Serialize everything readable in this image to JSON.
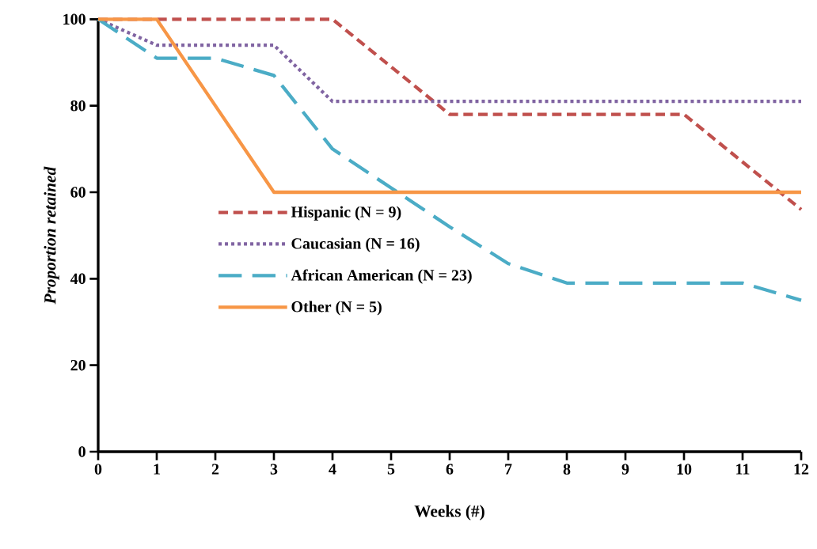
{
  "chart_data": {
    "type": "line",
    "xlabel": "Weeks (#)",
    "ylabel": "Proportion retained",
    "x": [
      0,
      1,
      2,
      3,
      4,
      5,
      6,
      7,
      8,
      9,
      10,
      11,
      12
    ],
    "xlim": [
      0,
      12
    ],
    "xticks": [
      0,
      1,
      2,
      3,
      4,
      5,
      6,
      7,
      8,
      9,
      10,
      11,
      12
    ],
    "ylim": [
      0,
      100
    ],
    "yticks": [
      0,
      20,
      40,
      60,
      80,
      100
    ],
    "grid": false,
    "legend": "left",
    "marker": "none",
    "series": [
      {
        "name": "Hispanic (N = 9)",
        "color": "#c0504d",
        "line_style": "dashed",
        "values": [
          100,
          100,
          100,
          100,
          100,
          89,
          78,
          78,
          78,
          78,
          78,
          67,
          56
        ]
      },
      {
        "name": "Caucasian (N = 16)",
        "color": "#8064a2",
        "line_style": "dotted",
        "values": [
          100,
          94,
          94,
          94,
          81,
          81,
          81,
          81,
          81,
          81,
          81,
          81,
          81
        ]
      },
      {
        "name": "African American (N = 23)",
        "color": "#4bacc6",
        "line_style": "long dashed",
        "values": [
          100,
          91,
          91,
          87,
          70,
          61,
          52,
          43.5,
          39,
          39,
          39,
          39,
          35
        ]
      },
      {
        "name": "Other (N = 5)",
        "color": "#f79646",
        "line_style": "solid",
        "values": [
          100,
          100,
          80,
          60,
          60,
          60,
          60,
          60,
          60,
          60,
          60,
          60,
          60
        ]
      }
    ]
  }
}
